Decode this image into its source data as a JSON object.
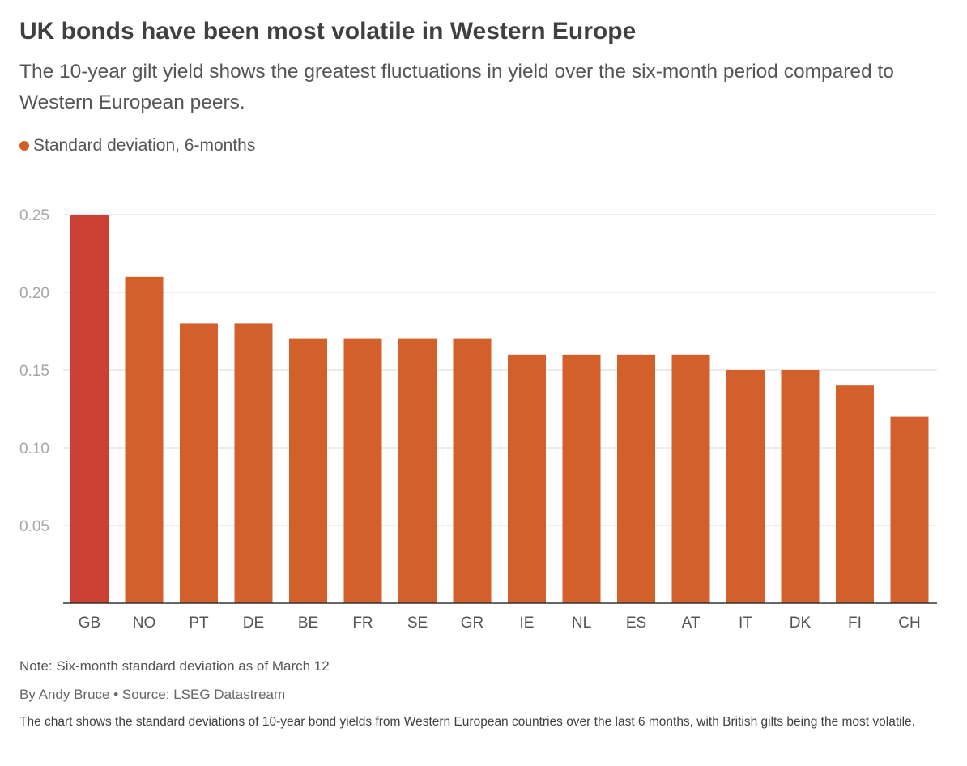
{
  "header": {
    "title": "UK bonds have been most volatile in Western Europe",
    "subtitle": "The 10-year gilt yield shows the greatest fluctuations in yield over the six-month period compared to Western European peers."
  },
  "legend": {
    "label": "Standard deviation, 6-months",
    "color": "#d35f2b"
  },
  "colors": {
    "bar": "#d35f2b",
    "highlight": "#cc4136",
    "grid": "#d8d8d8",
    "axis": "#333333",
    "tick_text": "#a6a6a6",
    "category_text": "#555555"
  },
  "chart_data": {
    "type": "bar",
    "title": "",
    "xlabel": "",
    "ylabel": "",
    "categories": [
      "GB",
      "NO",
      "PT",
      "DE",
      "BE",
      "FR",
      "SE",
      "GR",
      "IE",
      "NL",
      "ES",
      "AT",
      "IT",
      "DK",
      "FI",
      "CH"
    ],
    "series": [
      {
        "name": "Standard deviation, 6-months",
        "values": [
          0.25,
          0.21,
          0.18,
          0.18,
          0.17,
          0.17,
          0.17,
          0.17,
          0.16,
          0.16,
          0.16,
          0.16,
          0.15,
          0.15,
          0.14,
          0.12
        ]
      }
    ],
    "highlight_category": "GB",
    "ylim": [
      0,
      0.25
    ],
    "yticks": [
      "0.05",
      "0.10",
      "0.15",
      "0.20",
      "0.25"
    ],
    "grid": true,
    "legend_position": "top-left"
  },
  "footer": {
    "note": "Note: Six-month standard deviation as of March 12",
    "byline": "By Andy Bruce • Source: LSEG Datastream",
    "description": "The chart shows the standard deviations of 10-year bond yields from Western European countries over the last 6 months, with British gilts being the most volatile."
  }
}
